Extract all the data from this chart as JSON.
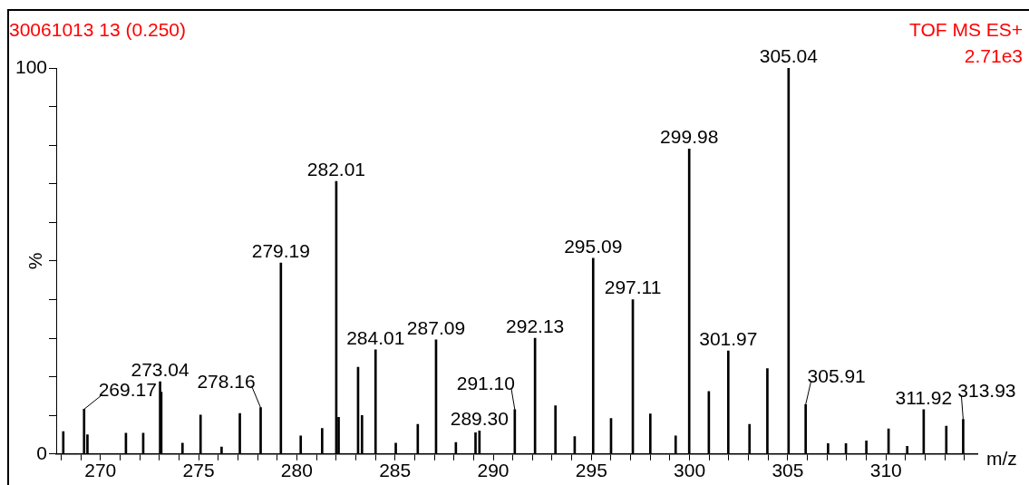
{
  "chart_data": {
    "type": "bar",
    "title": "30061013 13 (0.250)",
    "xlabel": "m/z",
    "ylabel": "%",
    "color": "#000000",
    "annotations": [
      "TOF MS ES+",
      "2.71e3",
      {
        "text": "269.17",
        "x": 269.17,
        "y": 11.6
      },
      {
        "text": "273.04",
        "x": 273.04,
        "y": 18.7
      },
      {
        "text": "278.16",
        "x": 278.16,
        "y": 12
      },
      {
        "text": "279.19",
        "x": 279.19,
        "y": 49.5
      },
      {
        "text": "282.01",
        "x": 282.01,
        "y": 70.6
      },
      {
        "text": "284.01",
        "x": 284.01,
        "y": 27
      },
      {
        "text": "287.09",
        "x": 287.09,
        "y": 29.6
      },
      {
        "text": "289.30",
        "x": 289.3,
        "y": 6
      },
      {
        "text": "291.10",
        "x": 291.1,
        "y": 11.5
      },
      {
        "text": "292.13",
        "x": 292.13,
        "y": 30
      },
      {
        "text": "295.09",
        "x": 295.09,
        "y": 50.7
      },
      {
        "text": "297.11",
        "x": 297.11,
        "y": 40
      },
      {
        "text": "299.98",
        "x": 299.98,
        "y": 79
      },
      {
        "text": "301.97",
        "x": 301.97,
        "y": 26.7
      },
      {
        "text": "305.04",
        "x": 305.04,
        "y": 100
      },
      {
        "text": "305.91",
        "x": 305.91,
        "y": 12.8
      },
      {
        "text": "311.92",
        "x": 311.92,
        "y": 11.5
      },
      {
        "text": "313.93",
        "x": 313.93,
        "y": 9
      }
    ],
    "x": [
      268.11,
      269.17,
      269.34,
      271.3,
      272.18,
      273.04,
      273.1,
      274.18,
      275.1,
      276.17,
      277.1,
      278.16,
      279.19,
      280.2,
      281.29,
      282.01,
      282.13,
      283.12,
      283.32,
      284.01,
      285.04,
      286.16,
      287.09,
      288.1,
      289.1,
      289.3,
      291.1,
      292.13,
      293.17,
      294.15,
      295.09,
      296.0,
      297.11,
      298.0,
      299.29,
      299.98,
      300.98,
      301.97,
      303.05,
      303.96,
      305.04,
      305.91,
      307.05,
      307.96,
      309.0,
      310.13,
      311.08,
      311.92,
      313.07,
      313.93
    ],
    "values": [
      5.8,
      11.6,
      5,
      5.4,
      5.4,
      18.7,
      16,
      2.8,
      10.1,
      1.8,
      10.5,
      12,
      49.5,
      4.7,
      6.6,
      70.6,
      9.5,
      22.5,
      10,
      27,
      2.8,
      7.7,
      29.6,
      3,
      5.5,
      6,
      11.5,
      30,
      12.5,
      4.5,
      50.7,
      9.2,
      40,
      10.4,
      4.7,
      79,
      16.2,
      26.7,
      7.7,
      22.1,
      100,
      12.8,
      2.7,
      2.7,
      3.4,
      6.5,
      2,
      11.5,
      7.2,
      9
    ],
    "xlim": [
      267.75,
      314.65
    ],
    "xticks": [
      {
        "value": 268,
        "label": null
      },
      {
        "value": 269,
        "label": null
      },
      270,
      {
        "value": 271,
        "label": null
      },
      {
        "value": 272,
        "label": null
      },
      {
        "value": 273,
        "label": null
      },
      {
        "value": 274,
        "label": null
      },
      275,
      {
        "value": 276,
        "label": null
      },
      {
        "value": 277,
        "label": null
      },
      {
        "value": 278,
        "label": null
      },
      {
        "value": 279,
        "label": null
      },
      280,
      {
        "value": 281,
        "label": null
      },
      {
        "value": 282,
        "label": null
      },
      {
        "value": 283,
        "label": null
      },
      {
        "value": 284,
        "label": null
      },
      285,
      {
        "value": 286,
        "label": null
      },
      {
        "value": 287,
        "label": null
      },
      {
        "value": 288,
        "label": null
      },
      {
        "value": 289,
        "label": null
      },
      290,
      {
        "value": 291,
        "label": null
      },
      {
        "value": 292,
        "label": null
      },
      {
        "value": 293,
        "label": null
      },
      {
        "value": 294,
        "label": null
      },
      295,
      {
        "value": 296,
        "label": null
      },
      {
        "value": 297,
        "label": null
      },
      {
        "value": 298,
        "label": null
      },
      {
        "value": 299,
        "label": null
      },
      300,
      {
        "value": 301,
        "label": null
      },
      {
        "value": 302,
        "label": null
      },
      {
        "value": 303,
        "label": null
      },
      {
        "value": 304,
        "label": null
      },
      305,
      {
        "value": 306,
        "label": null
      },
      {
        "value": 307,
        "label": null
      },
      {
        "value": 308,
        "label": null
      },
      {
        "value": 309,
        "label": null
      },
      310,
      {
        "value": 311,
        "label": null
      },
      {
        "value": 312,
        "label": null
      },
      {
        "value": 313,
        "label": null
      },
      {
        "value": 314,
        "label": null
      }
    ],
    "ylim": [
      0,
      100
    ],
    "yticks": [
      0,
      {
        "value": 10,
        "label": null
      },
      {
        "value": 20,
        "label": null
      },
      {
        "value": 30,
        "label": null
      },
      {
        "value": 40,
        "label": null
      },
      {
        "value": 50,
        "label": null
      },
      {
        "value": 60,
        "label": null
      },
      {
        "value": 70,
        "label": null
      },
      {
        "value": 80,
        "label": null
      },
      {
        "value": 90,
        "label": null
      },
      100
    ]
  }
}
